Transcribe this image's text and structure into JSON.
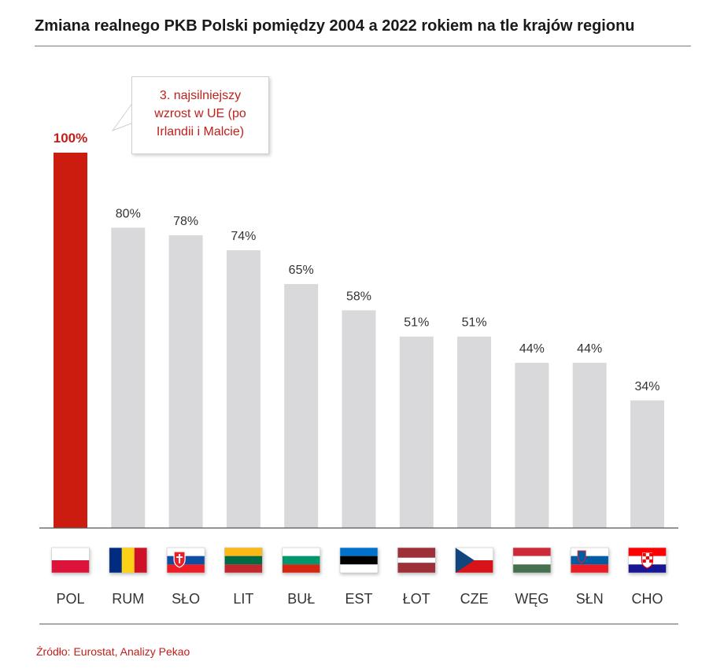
{
  "title": "Zmiana realnego PKB Polski pomiędzy 2004 a 2022 rokiem na tle krajów regionu",
  "source": "Źródło: Eurostat, Analizy Pekao",
  "annotation": "3. najsilniejszy wzrost w UE (po Irlandii i Malcie)",
  "colors": {
    "highlight": "#cc1b0f",
    "bar": "#d9d9dc",
    "axis": "#555555",
    "label": "#333333",
    "accent_text": "#c0201a"
  },
  "chart_data": {
    "type": "bar",
    "title": "Zmiana realnego PKB Polski pomiędzy 2004 a 2022 rokiem na tle krajów regionu",
    "xlabel": "",
    "ylabel": "",
    "ylim": [
      0,
      100
    ],
    "grid": false,
    "legend": "none",
    "categories": [
      "POL",
      "RUM",
      "SŁO",
      "LIT",
      "BUŁ",
      "EST",
      "ŁOT",
      "CZE",
      "WĘG",
      "SŁN",
      "CHO"
    ],
    "values": [
      100,
      80,
      78,
      74,
      65,
      58,
      51,
      51,
      44,
      44,
      34
    ],
    "data_labels": [
      "100%",
      "80%",
      "78%",
      "74%",
      "65%",
      "58%",
      "51%",
      "51%",
      "44%",
      "44%",
      "34%"
    ],
    "highlight_index": 0,
    "flags": [
      "poland-flag",
      "romania-flag",
      "slovakia-flag",
      "lithuania-flag",
      "bulgaria-flag",
      "estonia-flag",
      "latvia-flag",
      "czechia-flag",
      "hungary-flag",
      "slovenia-flag",
      "croatia-flag"
    ]
  }
}
